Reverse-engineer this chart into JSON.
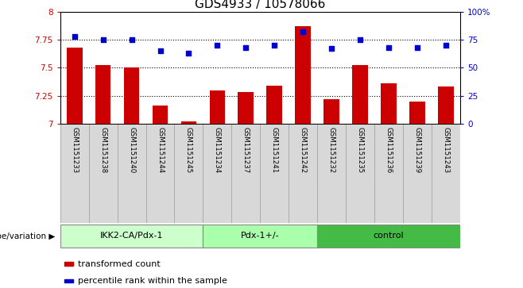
{
  "title": "GDS4933 / 10578066",
  "samples": [
    "GSM1151233",
    "GSM1151238",
    "GSM1151240",
    "GSM1151244",
    "GSM1151245",
    "GSM1151234",
    "GSM1151237",
    "GSM1151241",
    "GSM1151242",
    "GSM1151232",
    "GSM1151235",
    "GSM1151236",
    "GSM1151239",
    "GSM1151243"
  ],
  "bar_values": [
    7.68,
    7.52,
    7.5,
    7.16,
    7.02,
    7.3,
    7.28,
    7.34,
    7.87,
    7.22,
    7.52,
    7.36,
    7.2,
    7.33
  ],
  "dot_values": [
    78,
    75,
    75,
    65,
    63,
    70,
    68,
    70,
    82,
    67,
    75,
    68,
    68,
    70
  ],
  "groups": [
    {
      "label": "IKK2-CA/Pdx-1",
      "start": 0,
      "end": 5,
      "color": "#ccffcc"
    },
    {
      "label": "Pdx-1+/-",
      "start": 5,
      "end": 9,
      "color": "#aaffaa"
    },
    {
      "label": "control",
      "start": 9,
      "end": 14,
      "color": "#44bb44"
    }
  ],
  "bar_color": "#cc0000",
  "dot_color": "#0000cc",
  "ylim_left": [
    7.0,
    8.0
  ],
  "ylim_right": [
    0,
    100
  ],
  "yticks_left": [
    7.0,
    7.25,
    7.5,
    7.75,
    8.0
  ],
  "yticks_left_labels": [
    "7",
    "7.25",
    "7.5",
    "7.75",
    "8"
  ],
  "yticks_right": [
    0,
    25,
    50,
    75,
    100
  ],
  "yticks_right_labels": [
    "0",
    "25",
    "50",
    "75",
    "100%"
  ],
  "grid_values": [
    7.25,
    7.5,
    7.75
  ],
  "xlabel": "genotype/variation",
  "legend_bar": "transformed count",
  "legend_dot": "percentile rank within the sample",
  "tick_label_color_left": "#cc0000",
  "tick_label_color_right": "#0000cc",
  "title_fontsize": 11,
  "bar_width": 0.55,
  "cell_color": "#d8d8d8",
  "cell_border_color": "#aaaaaa"
}
